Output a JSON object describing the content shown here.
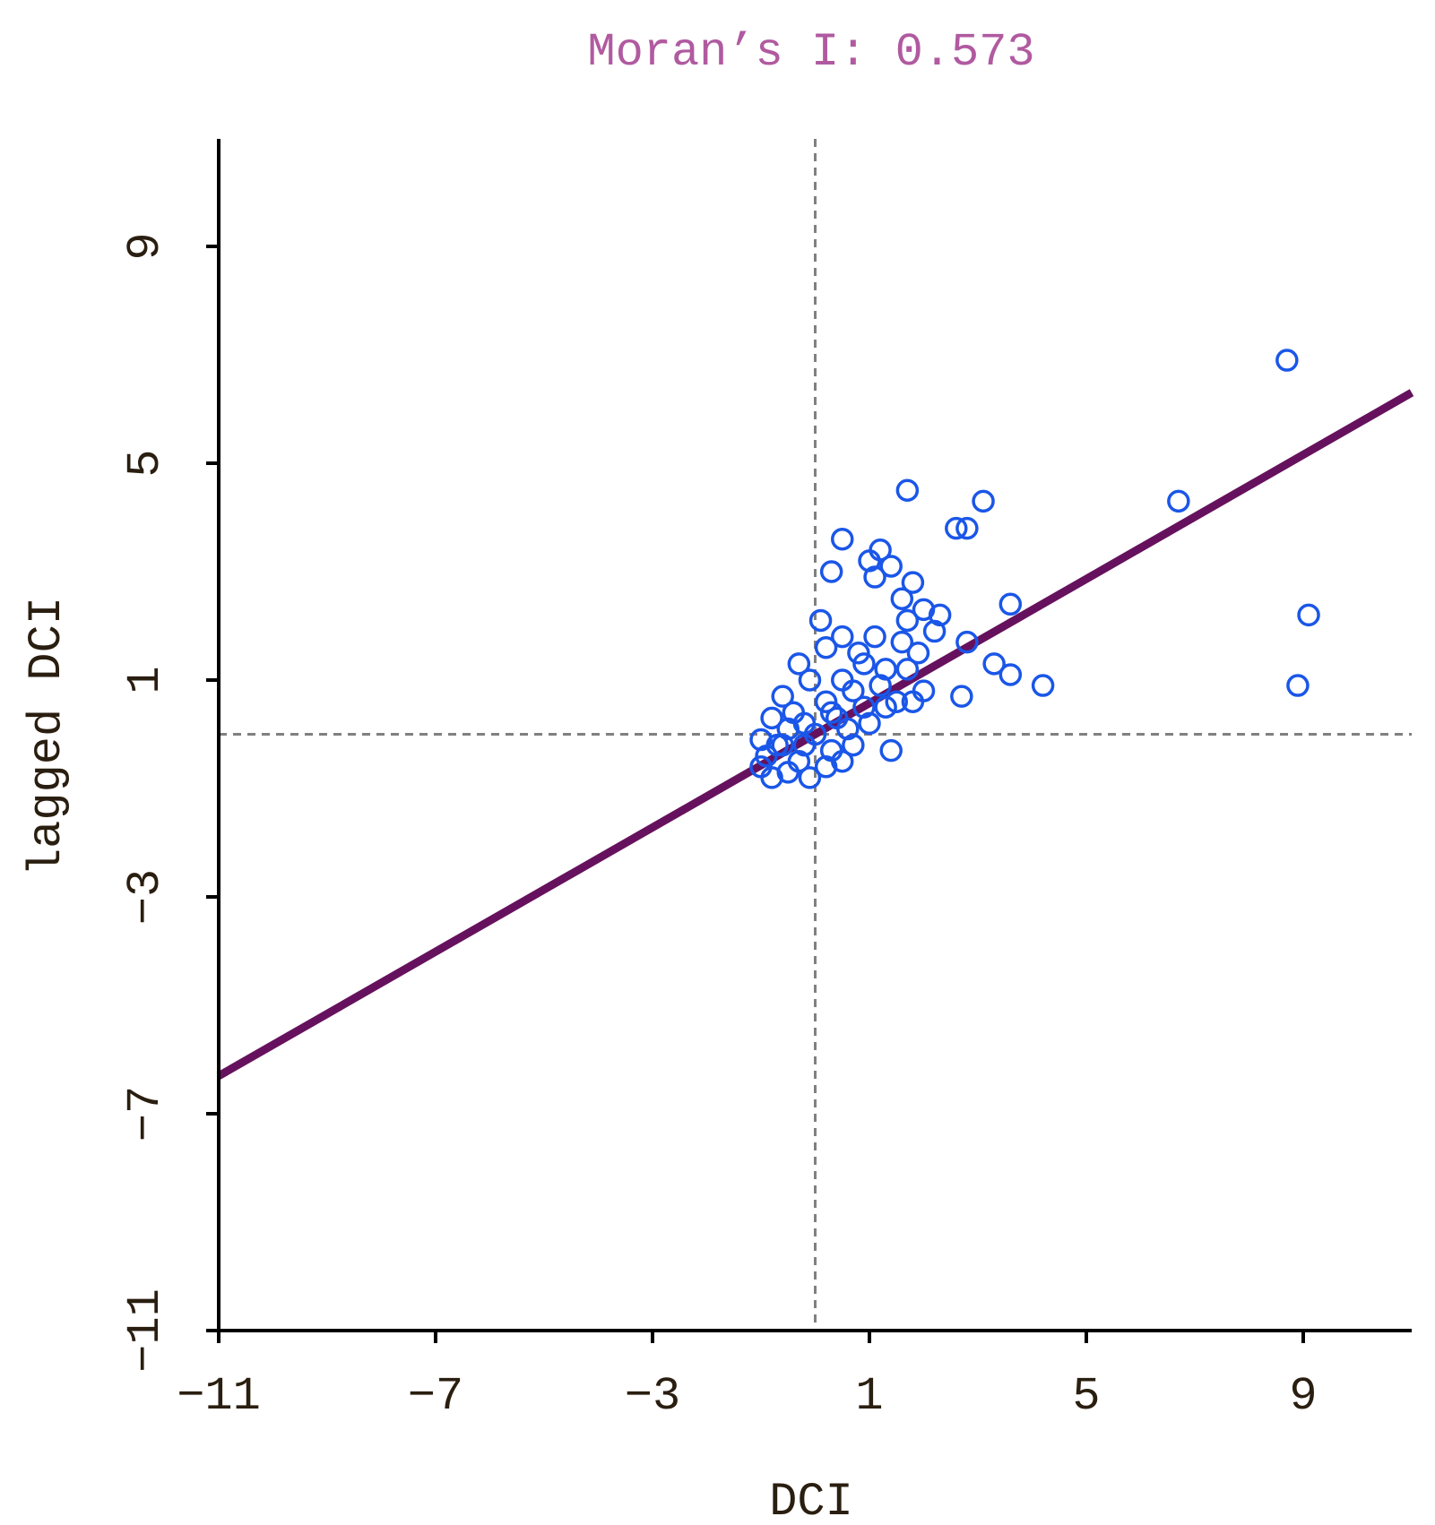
{
  "chart_data": {
    "type": "scatter",
    "title": "Moran’s I: 0.573",
    "xlabel": "DCI",
    "ylabel": "lagged DCI",
    "xlim": [
      -11,
      11
    ],
    "ylim": [
      -11,
      11
    ],
    "xticks": [
      -11,
      -7,
      -3,
      1,
      5,
      9
    ],
    "yticks": [
      -11,
      -7,
      -3,
      1,
      5,
      9
    ],
    "xtick_labels": [
      "−11",
      "−7",
      "−3",
      "1",
      "5",
      "9"
    ],
    "ytick_labels": [
      "−11",
      "−7",
      "−3",
      "1",
      "5",
      "9"
    ],
    "mean_x": 0,
    "mean_y": 0,
    "regression": {
      "slope": 0.573,
      "intercept": 0.0
    },
    "grid": false,
    "points": [
      {
        "x": 8.7,
        "y": 6.9
      },
      {
        "x": 6.7,
        "y": 4.3
      },
      {
        "x": 9.1,
        "y": 2.2
      },
      {
        "x": 8.9,
        "y": 0.9
      },
      {
        "x": 1.7,
        "y": 4.5
      },
      {
        "x": 3.1,
        "y": 4.3
      },
      {
        "x": 2.6,
        "y": 3.8
      },
      {
        "x": 2.8,
        "y": 3.8
      },
      {
        "x": 3.6,
        "y": 2.4
      },
      {
        "x": 4.2,
        "y": 0.9
      },
      {
        "x": 3.6,
        "y": 1.1
      },
      {
        "x": 3.3,
        "y": 1.3
      },
      {
        "x": 2.8,
        "y": 1.7
      },
      {
        "x": 2.7,
        "y": 0.7
      },
      {
        "x": 0.5,
        "y": 3.6
      },
      {
        "x": 1.2,
        "y": 3.4
      },
      {
        "x": 1.0,
        "y": 3.2
      },
      {
        "x": 1.4,
        "y": 3.1
      },
      {
        "x": 0.3,
        "y": 3.0
      },
      {
        "x": 1.1,
        "y": 2.9
      },
      {
        "x": 1.8,
        "y": 2.8
      },
      {
        "x": 1.6,
        "y": 2.5
      },
      {
        "x": 2.0,
        "y": 2.3
      },
      {
        "x": 2.3,
        "y": 2.2
      },
      {
        "x": 0.1,
        "y": 2.1
      },
      {
        "x": 1.7,
        "y": 2.1
      },
      {
        "x": 2.2,
        "y": 1.9
      },
      {
        "x": 0.5,
        "y": 1.8
      },
      {
        "x": 1.1,
        "y": 1.8
      },
      {
        "x": 1.6,
        "y": 1.7
      },
      {
        "x": 1.9,
        "y": 1.5
      },
      {
        "x": 0.2,
        "y": 1.6
      },
      {
        "x": 0.8,
        "y": 1.5
      },
      {
        "x": 1.3,
        "y": 1.2
      },
      {
        "x": 1.7,
        "y": 1.2
      },
      {
        "x": -0.3,
        "y": 1.3
      },
      {
        "x": 0.5,
        "y": 1.0
      },
      {
        "x": 1.2,
        "y": 0.9
      },
      {
        "x": 2.0,
        "y": 0.8
      },
      {
        "x": -0.1,
        "y": 1.0
      },
      {
        "x": 0.7,
        "y": 0.8
      },
      {
        "x": 1.5,
        "y": 0.6
      },
      {
        "x": 1.8,
        "y": 0.6
      },
      {
        "x": -0.6,
        "y": 0.7
      },
      {
        "x": 0.2,
        "y": 0.6
      },
      {
        "x": 0.9,
        "y": 0.5
      },
      {
        "x": 1.3,
        "y": 0.5
      },
      {
        "x": -0.4,
        "y": 0.4
      },
      {
        "x": 0.4,
        "y": 0.3
      },
      {
        "x": 1.0,
        "y": 0.2
      },
      {
        "x": -0.8,
        "y": 0.3
      },
      {
        "x": -0.2,
        "y": 0.2
      },
      {
        "x": 0.6,
        "y": 0.1
      },
      {
        "x": -0.5,
        "y": 0.1
      },
      {
        "x": 0.0,
        "y": 0.0
      },
      {
        "x": 0.7,
        "y": -0.2
      },
      {
        "x": -1.0,
        "y": -0.1
      },
      {
        "x": -0.6,
        "y": -0.2
      },
      {
        "x": 0.3,
        "y": -0.3
      },
      {
        "x": 1.4,
        "y": -0.3
      },
      {
        "x": -0.9,
        "y": -0.4
      },
      {
        "x": -0.3,
        "y": -0.5
      },
      {
        "x": 0.5,
        "y": -0.5
      },
      {
        "x": -1.0,
        "y": -0.6
      },
      {
        "x": -0.5,
        "y": -0.7
      },
      {
        "x": 0.2,
        "y": -0.6
      },
      {
        "x": -0.8,
        "y": -0.8
      },
      {
        "x": -0.1,
        "y": -0.8
      },
      {
        "x": -0.7,
        "y": -0.2
      },
      {
        "x": 0.9,
        "y": 1.3
      },
      {
        "x": 0.3,
        "y": 0.4
      },
      {
        "x": -0.2,
        "y": -0.2
      }
    ]
  },
  "colors": {
    "points": "#1a56e8",
    "regression_line": "#66115e",
    "reference_lines": "#808080",
    "axes": "#000000",
    "title": "#b05aa0",
    "labels": "#2a1e10"
  }
}
